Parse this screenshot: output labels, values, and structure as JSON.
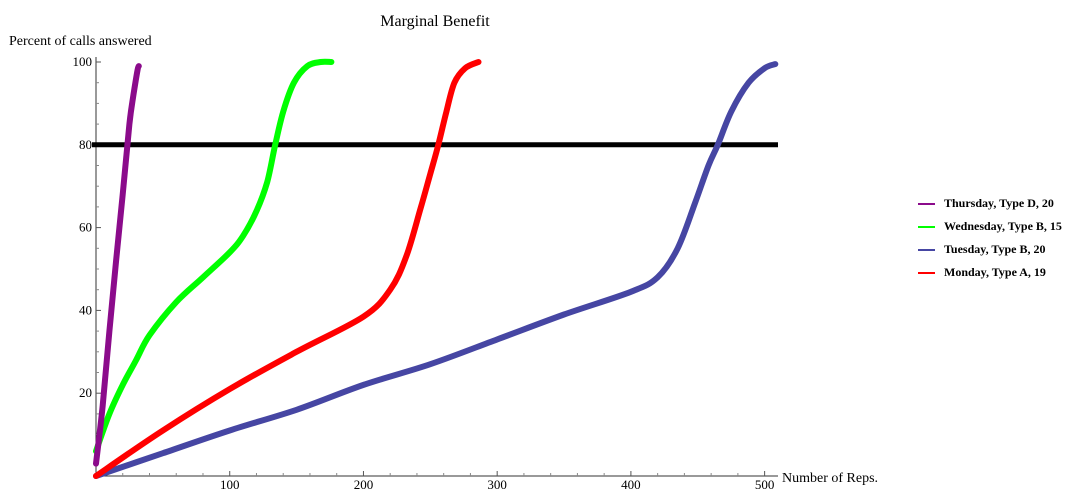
{
  "chart_data": {
    "type": "line",
    "title": "Marginal Benefit",
    "xlabel": "Number of Reps.",
    "ylabel": "Percent of calls answered",
    "xlim": [
      0,
      510
    ],
    "ylim": [
      0,
      100
    ],
    "xticks": [
      100,
      200,
      300,
      400,
      500
    ],
    "yticks": [
      20,
      40,
      60,
      80,
      100
    ],
    "grid": false,
    "legend_position": "right",
    "reference_line": {
      "y": 80,
      "color": "#000000"
    },
    "series": [
      {
        "name": "Thursday, Type D, 20",
        "color": "#8b0b8b",
        "points": [
          [
            0,
            3
          ],
          [
            5,
            17
          ],
          [
            10,
            35
          ],
          [
            15,
            52
          ],
          [
            20,
            68
          ],
          [
            25,
            85
          ],
          [
            28,
            92
          ],
          [
            31,
            98
          ],
          [
            32,
            99
          ]
        ]
      },
      {
        "name": "Wednesday, Type B, 15",
        "color": "#00ff00",
        "points": [
          [
            0,
            6
          ],
          [
            10,
            15
          ],
          [
            20,
            22
          ],
          [
            30,
            28
          ],
          [
            40,
            34
          ],
          [
            60,
            42
          ],
          [
            80,
            48
          ],
          [
            100,
            54
          ],
          [
            110,
            58
          ],
          [
            120,
            64
          ],
          [
            128,
            71
          ],
          [
            134,
            80
          ],
          [
            140,
            88
          ],
          [
            148,
            95
          ],
          [
            158,
            99
          ],
          [
            168,
            100
          ],
          [
            176,
            100
          ]
        ]
      },
      {
        "name": "Tuesday, Type B, 20",
        "color": "#4646a3",
        "points": [
          [
            0,
            0
          ],
          [
            50,
            5.5
          ],
          [
            100,
            11
          ],
          [
            150,
            16
          ],
          [
            200,
            22
          ],
          [
            250,
            27
          ],
          [
            300,
            33
          ],
          [
            350,
            39
          ],
          [
            400,
            44.5
          ],
          [
            420,
            48
          ],
          [
            435,
            55
          ],
          [
            448,
            66
          ],
          [
            458,
            75
          ],
          [
            465,
            80
          ],
          [
            475,
            88
          ],
          [
            488,
            95
          ],
          [
            500,
            98.5
          ],
          [
            508,
            99.5
          ]
        ]
      },
      {
        "name": "Monday, Type A, 19",
        "color": "#ff0000",
        "points": [
          [
            0,
            0
          ],
          [
            50,
            11
          ],
          [
            100,
            21
          ],
          [
            150,
            30
          ],
          [
            200,
            38.5
          ],
          [
            220,
            45
          ],
          [
            232,
            53
          ],
          [
            243,
            65
          ],
          [
            250,
            73
          ],
          [
            256,
            80
          ],
          [
            262,
            88
          ],
          [
            268,
            95
          ],
          [
            276,
            98.5
          ],
          [
            286,
            100
          ]
        ]
      }
    ]
  }
}
